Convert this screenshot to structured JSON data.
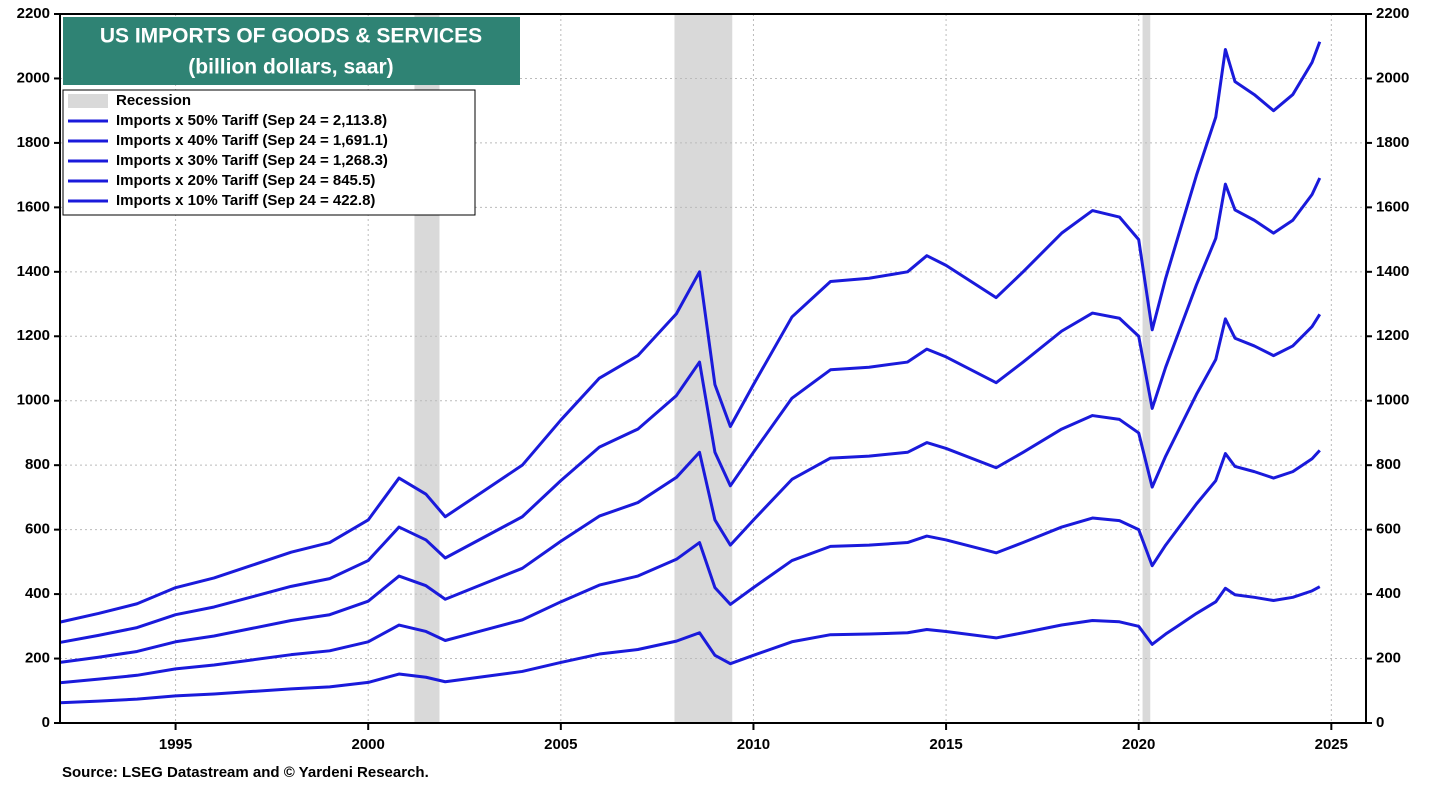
{
  "chart_data": {
    "type": "line",
    "title": "US IMPORTS OF GOODS & SERVICES",
    "subtitle": "(billion dollars, saar)",
    "source": "Source: LSEG Datastream and © Yardeni Research.",
    "recession_label": "Recession",
    "recession_color": "#d9d9d9",
    "recessions": [
      [
        2001.2,
        2001.85
      ],
      [
        2007.95,
        2009.45
      ],
      [
        2020.1,
        2020.3
      ]
    ],
    "xlim": [
      1992,
      2025.9
    ],
    "xticks": [
      1995,
      2000,
      2005,
      2010,
      2015,
      2020,
      2025
    ],
    "ylim": [
      0,
      2200
    ],
    "yticks": [
      0,
      200,
      400,
      600,
      800,
      1000,
      1200,
      1400,
      1600,
      1800,
      2000,
      2200
    ],
    "grid": true,
    "legend": "upper left",
    "x": [
      1992,
      1993,
      1994,
      1995,
      1996,
      1997,
      1998,
      1999,
      2000,
      2000.8,
      2001.5,
      2002,
      2003,
      2004,
      2005,
      2006,
      2007,
      2008,
      2008.6,
      2009,
      2009.4,
      2010,
      2011,
      2012,
      2013,
      2014,
      2014.5,
      2015,
      2016.3,
      2017,
      2018,
      2018.8,
      2019.5,
      2020,
      2020.35,
      2020.7,
      2021,
      2021.5,
      2022,
      2022.25,
      2022.5,
      2023,
      2023.5,
      2024,
      2024.5,
      2024.7
    ],
    "series": [
      {
        "name": "Imports x 50% Tariff (Sep 24 = 2,113.8)",
        "color": "#1a1adb",
        "values": [
          313,
          340,
          370,
          420,
          450,
          490,
          530,
          560,
          630,
          760,
          710,
          640,
          720,
          800,
          940,
          1070,
          1140,
          1270,
          1400,
          1050,
          920,
          1050,
          1260,
          1370,
          1380,
          1400,
          1450,
          1420,
          1320,
          1400,
          1520,
          1590,
          1570,
          1500,
          1220,
          1380,
          1500,
          1700,
          1880,
          2090,
          1990,
          1950,
          1900,
          1950,
          2050,
          2114
        ]
      },
      {
        "name": "Imports x 40% Tariff (Sep 24 = 1,691.1)",
        "color": "#1a1adb",
        "values": [
          250,
          272,
          296,
          336,
          360,
          392,
          424,
          448,
          504,
          608,
          568,
          512,
          576,
          640,
          752,
          856,
          912,
          1016,
          1120,
          840,
          736,
          840,
          1008,
          1096,
          1104,
          1120,
          1160,
          1136,
          1056,
          1120,
          1216,
          1272,
          1256,
          1200,
          976,
          1104,
          1200,
          1360,
          1504,
          1672,
          1592,
          1560,
          1520,
          1560,
          1640,
          1691
        ]
      },
      {
        "name": "Imports x 30% Tariff (Sep 24 = 1,268.3)",
        "color": "#1a1adb",
        "values": [
          188,
          204,
          222,
          252,
          270,
          294,
          318,
          336,
          378,
          456,
          426,
          384,
          432,
          480,
          564,
          642,
          684,
          762,
          840,
          630,
          552,
          630,
          756,
          822,
          828,
          840,
          870,
          852,
          792,
          840,
          912,
          954,
          942,
          900,
          732,
          828,
          900,
          1020,
          1128,
          1254,
          1194,
          1170,
          1140,
          1170,
          1230,
          1268
        ]
      },
      {
        "name": "Imports x 20% Tariff (Sep 24 = 845.5)",
        "color": "#1a1adb",
        "values": [
          125,
          136,
          148,
          168,
          180,
          196,
          212,
          224,
          252,
          304,
          284,
          256,
          288,
          320,
          376,
          428,
          456,
          508,
          560,
          420,
          368,
          420,
          504,
          548,
          552,
          560,
          580,
          568,
          528,
          560,
          608,
          636,
          628,
          600,
          488,
          552,
          600,
          680,
          752,
          836,
          796,
          780,
          760,
          780,
          820,
          846
        ]
      },
      {
        "name": "Imports x 10% Tariff (Sep 24 = 422.8)",
        "color": "#1a1adb",
        "values": [
          63,
          68,
          74,
          84,
          90,
          98,
          106,
          112,
          126,
          152,
          142,
          128,
          144,
          160,
          188,
          214,
          228,
          254,
          280,
          210,
          184,
          210,
          252,
          274,
          276,
          280,
          290,
          284,
          264,
          280,
          304,
          318,
          314,
          300,
          244,
          276,
          300,
          340,
          376,
          418,
          398,
          390,
          380,
          390,
          410,
          423
        ]
      }
    ]
  }
}
